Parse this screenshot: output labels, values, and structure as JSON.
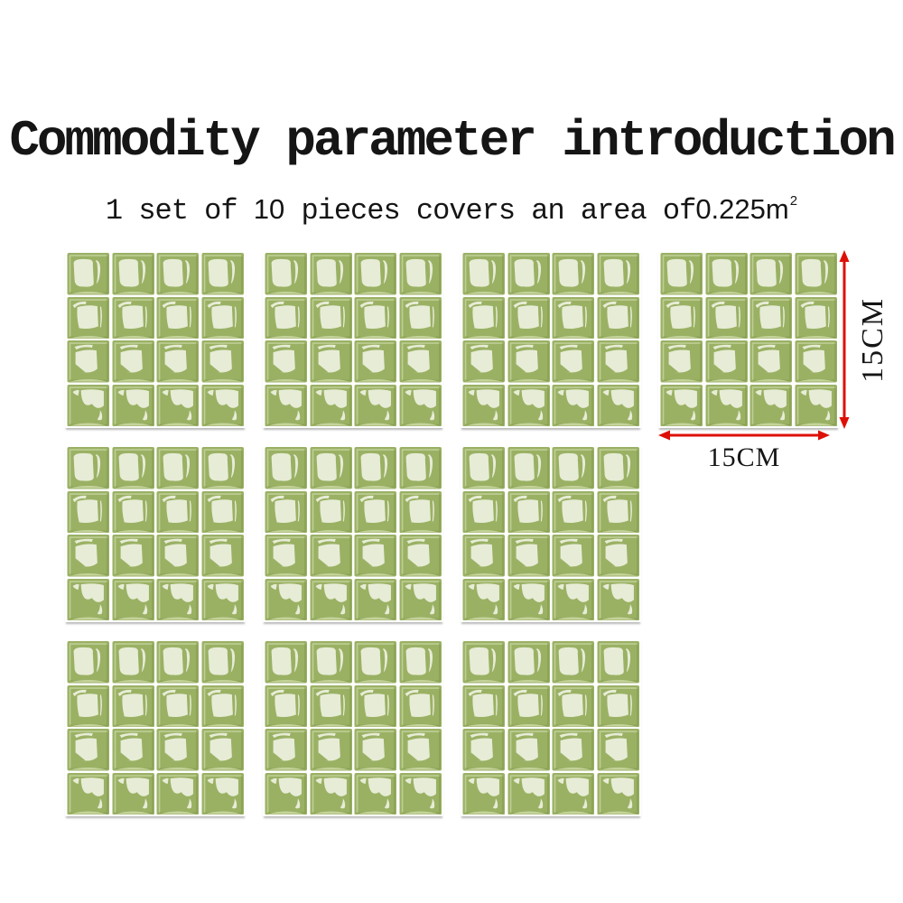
{
  "header": {
    "title": "Commodity parameter introduction",
    "subtitle": {
      "prefix": "1 set of ",
      "quantity": "10",
      "middle": " pieces covers an area of",
      "area_value": "0.225m",
      "area_exponent": "2"
    }
  },
  "board": {
    "rows": [
      4,
      3,
      3
    ],
    "sheet_rows": 4,
    "sheet_cols": 4,
    "sheet_count": 10
  },
  "dimensions": {
    "height_label": "15CM",
    "width_label": "15CM"
  },
  "colors": {
    "text": "#151515",
    "arrow_red": "#dd1007",
    "tile_green": "#9ab164",
    "tile_green_dark": "#7e9648",
    "tile_green_light": "#c6d39c",
    "tile_cream": "#e7ecd6",
    "grout_white": "#ffffff",
    "sheet_shadow": "rgba(125,125,125,0.55)"
  }
}
